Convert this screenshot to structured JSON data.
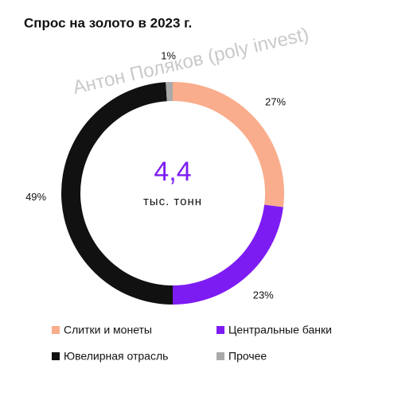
{
  "chart_data": {
    "type": "donut",
    "title": "Спрос на золото в 2023 г.",
    "watermark": "Антон Поляков (poly invest)",
    "center_value": {
      "value": 4.4,
      "label": "4,4"
    },
    "center_unit": "тыс. тонн",
    "categories": [
      "Слитки и монеты",
      "Центральные банки",
      "Ювелирная отрасль",
      "Прочее"
    ],
    "values": [
      27,
      23,
      49,
      1
    ],
    "value_labels": [
      "27%",
      "23%",
      "49%",
      "1%"
    ],
    "colors": [
      "#f9ad8c",
      "#7d1cf2",
      "#111111",
      "#a9a9a9"
    ]
  }
}
